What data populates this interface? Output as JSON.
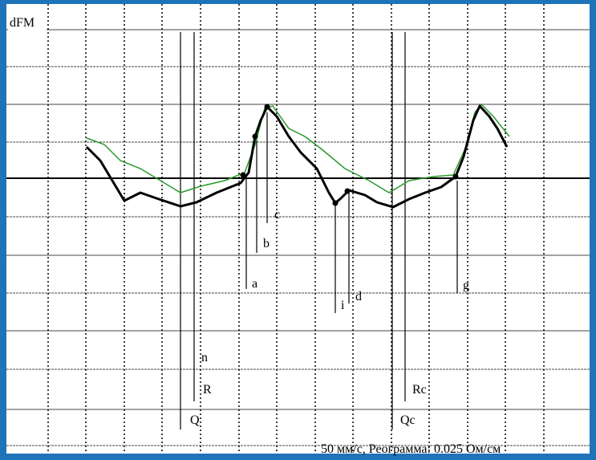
{
  "header": {
    "axis_label": "dFM"
  },
  "markers": [
    {
      "label": "Q"
    },
    {
      "label": "n"
    },
    {
      "label": "R"
    },
    {
      "label": "a"
    },
    {
      "label": "b"
    },
    {
      "label": "c"
    },
    {
      "label": "i"
    },
    {
      "label": "d"
    },
    {
      "label": "Qc"
    },
    {
      "label": "Rc"
    },
    {
      "label": "g"
    }
  ],
  "footer": {
    "caption": "50 мм/с, Реограмма: 0.025 Ом/см"
  }
}
